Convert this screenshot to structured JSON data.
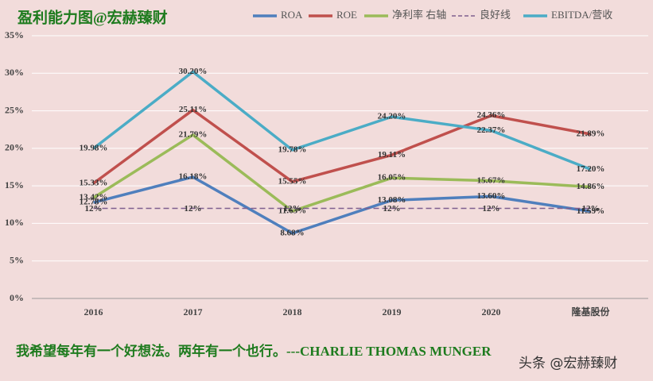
{
  "chart_data": {
    "type": "line",
    "title": "盈利能力图@宏赫臻财",
    "categories": [
      "2016",
      "2017",
      "2018",
      "2019",
      "2020",
      "隆基股份"
    ],
    "series": [
      {
        "name": "ROA",
        "color": "#4f7fbd",
        "values": [
          12.78,
          16.18,
          8.68,
          13.08,
          13.6,
          11.59
        ],
        "value_labels": [
          "12.78%",
          "16.18%",
          "8.68%",
          "13.08%",
          "13.60%",
          "11.59%"
        ]
      },
      {
        "name": "ROE",
        "color": "#c0504d",
        "values": [
          15.33,
          25.11,
          15.55,
          19.11,
          24.36,
          21.89
        ],
        "value_labels": [
          "15.33%",
          "25.11%",
          "15.55%",
          "19.11%",
          "24.36%",
          "21.89%"
        ]
      },
      {
        "name": "净利率 右轴",
        "color": "#9bbb59",
        "values": [
          13.42,
          21.79,
          11.63,
          16.05,
          15.67,
          14.86
        ],
        "value_labels": [
          "13.42%",
          "21.79%",
          "11.63%",
          "16.05%",
          "15.67%",
          "14.86%"
        ]
      },
      {
        "name": "良好线",
        "color": "#7f5f8f",
        "dashed": true,
        "values": [
          12,
          12,
          12,
          12,
          12,
          12
        ],
        "value_labels": [
          "12%",
          "12%",
          "12%",
          "12%",
          "12%",
          "12%"
        ]
      },
      {
        "name": "EBITDA/营收",
        "color": "#4bacc6",
        "values": [
          19.98,
          30.2,
          19.78,
          24.2,
          22.37,
          17.2
        ],
        "value_labels": [
          "19.98%",
          "30.20%",
          "19.78%",
          "24.20%",
          "22.37%",
          "17.20%"
        ]
      }
    ],
    "ylim": [
      0,
      35
    ],
    "yticks": [
      {
        "value": 0,
        "label": "0%"
      },
      {
        "value": 5,
        "label": "5%"
      },
      {
        "value": 10,
        "label": "10%"
      },
      {
        "value": 15,
        "label": "15%"
      },
      {
        "value": 20,
        "label": "20%"
      },
      {
        "value": 25,
        "label": "25%"
      },
      {
        "value": 30,
        "label": "30%"
      },
      {
        "value": 35,
        "label": "35%"
      }
    ],
    "grid": true,
    "legend": "top",
    "footnote": "我希望每年有一个好想法。两年有一个也行。---CHARLIE THOMAS MUNGER",
    "watermark": "头条 @宏赫臻财"
  }
}
